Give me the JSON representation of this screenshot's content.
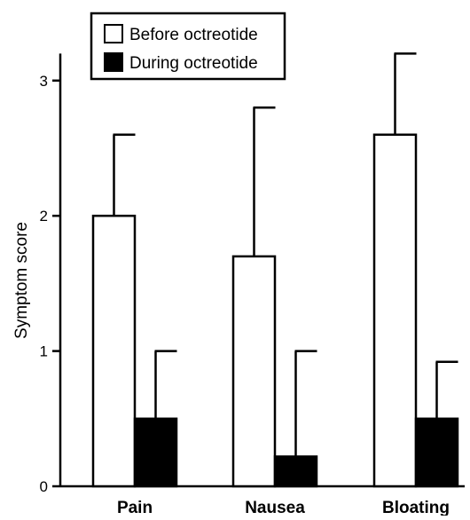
{
  "chart_data": {
    "type": "bar",
    "categories": [
      "Pain",
      "Nausea",
      "Bloating"
    ],
    "series": [
      {
        "name": "Before octreotide",
        "values": [
          2.0,
          1.7,
          2.6
        ],
        "error_upper": [
          2.6,
          2.8,
          3.2
        ],
        "fill": "#ffffff"
      },
      {
        "name": "During octreotide",
        "values": [
          0.5,
          0.22,
          0.5
        ],
        "error_upper": [
          1.0,
          1.0,
          0.92
        ],
        "fill": "#000000"
      }
    ],
    "xlabel": "",
    "ylabel": "Symptom score",
    "ylim": [
      0,
      3.2
    ],
    "yticks": [
      "0",
      "1",
      "2",
      "3"
    ],
    "legend_position": "top-left",
    "grid": false
  }
}
